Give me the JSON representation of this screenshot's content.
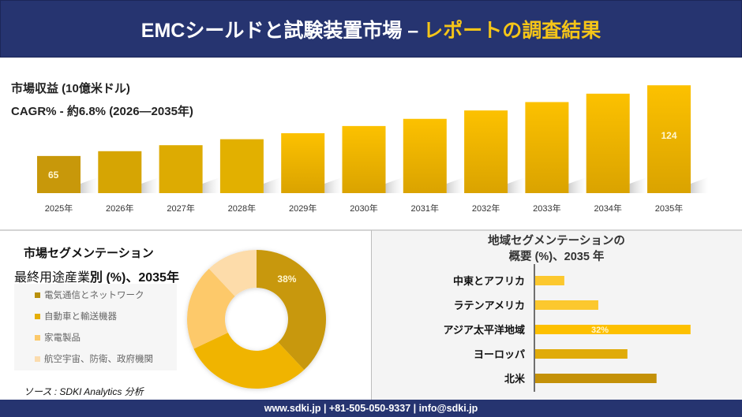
{
  "header": {
    "title_main": "EMCシールドと試験装置市場 –",
    "title_accent": "レポートの調査結果"
  },
  "revenue": {
    "label": "市場収益 (10億米ドル)",
    "cagr": "CAGR% - 約6.8% (2026—2035年)"
  },
  "segmentation": {
    "title": "市場セグメンテーション",
    "subtitle_a": "最終用途産業",
    "subtitle_b": "別 (%)、2035年"
  },
  "source": "ソース : SDKI Analytics 分析",
  "region": {
    "title_line1": "地域セグメンテーションの",
    "title_line2": "概要 (%)、2035 年"
  },
  "footer": "www.sdki.jp | +81-505-050-9337 | info@sdki.jp",
  "chart_data": [
    {
      "type": "bar",
      "title": "市場収益 (10億米ドル)",
      "subtitle": "CAGR% - 約6.8% (2026—2035年)",
      "categories": [
        "2025年",
        "2026年",
        "2027年",
        "2028年",
        "2029年",
        "2030年",
        "2031年",
        "2032年",
        "2033年",
        "2034年",
        "2035年"
      ],
      "values": [
        65,
        69,
        74,
        79,
        84,
        90,
        96,
        103,
        110,
        117,
        124
      ],
      "data_labels": {
        "0": "65",
        "10": "124"
      },
      "colors": [
        "#c8980a",
        "#d6a503",
        "#ddab02",
        "#e2b000",
        "#eeb600",
        "#f7bb00",
        "#f5ba00",
        "#f4b900",
        "#f2b800",
        "#f0b700",
        "#f0b600"
      ],
      "xlabel": "",
      "ylabel": "",
      "grid": false
    },
    {
      "type": "pie",
      "title": "最終用途産業別 (%)、2035年",
      "labels": [
        "電気通信とネットワーク",
        "自動車と輸送機器",
        "家電製品",
        "航空宇宙、防衛、政府機関"
      ],
      "values": [
        38,
        30,
        20,
        12
      ],
      "data_labels": {
        "0": "38%"
      },
      "colors": [
        "#c8980a",
        "#f0b400",
        "#fdc96a",
        "#fddcaa"
      ],
      "legend": "left"
    },
    {
      "type": "bar",
      "orientation": "horizontal",
      "title": "地域セグメンテーションの概要 (%)、2035 年",
      "categories": [
        "中東とアフリカ",
        "ラテンアメリカ",
        "アジア太平洋地域",
        "ヨーロッパ",
        "北米"
      ],
      "values": [
        6,
        13,
        32,
        19,
        25
      ],
      "data_labels": {
        "2": "32%"
      },
      "colors": [
        "#fcc82e",
        "#fcc82e",
        "#fdc000",
        "#e0ab09",
        "#c49108"
      ]
    }
  ]
}
